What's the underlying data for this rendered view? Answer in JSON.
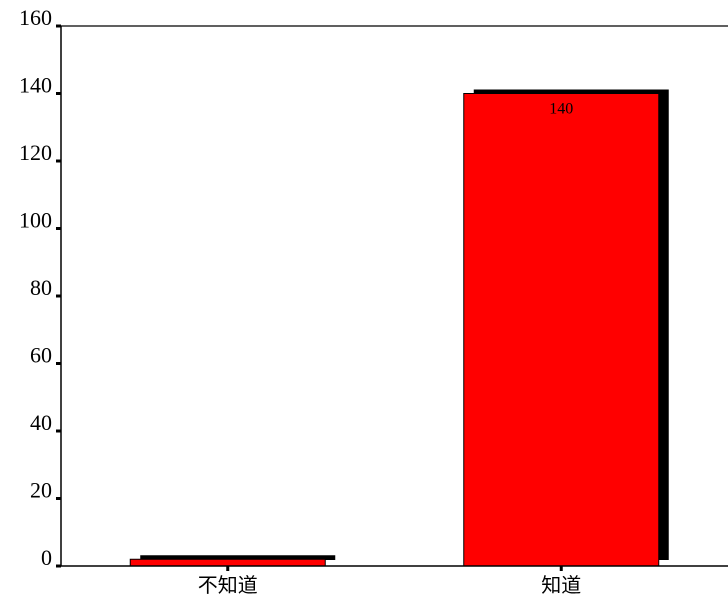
{
  "chart_data": {
    "type": "bar",
    "categories": [
      "不知道",
      "知道"
    ],
    "values": [
      2,
      140
    ],
    "data_labels": [
      "",
      "140"
    ],
    "ylim": [
      0,
      160
    ],
    "yticks": [
      0,
      20,
      40,
      60,
      80,
      100,
      120,
      140,
      160
    ],
    "bar_color": "#ff0000",
    "shadow_color": "#000000",
    "grid": false,
    "legend": "none"
  }
}
